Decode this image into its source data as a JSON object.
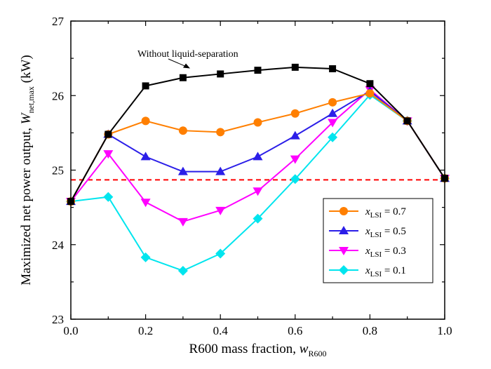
{
  "chart_data": {
    "type": "line",
    "x": [
      0.0,
      0.1,
      0.2,
      0.3,
      0.4,
      0.5,
      0.6,
      0.7,
      0.8,
      0.9,
      1.0
    ],
    "series": [
      {
        "name": "",
        "color": "#000000",
        "marker": "square",
        "values": [
          24.58,
          25.48,
          26.13,
          26.24,
          26.29,
          26.34,
          26.38,
          26.36,
          26.16,
          25.66,
          24.89
        ]
      },
      {
        "name": "x_LSI = 0.7",
        "color": "#ff7f00",
        "marker": "circle",
        "values": [
          24.58,
          25.48,
          25.66,
          25.53,
          25.51,
          25.64,
          25.76,
          25.91,
          26.03,
          25.66,
          24.89
        ]
      },
      {
        "name": "x_LSI = 0.5",
        "color": "#2b1ee8",
        "marker": "triangle-up",
        "values": [
          24.58,
          25.48,
          25.18,
          24.98,
          24.98,
          25.18,
          25.46,
          25.76,
          26.06,
          25.66,
          24.89
        ]
      },
      {
        "name": "x_LSI = 0.3",
        "color": "#ff00ff",
        "marker": "triangle-down",
        "values": [
          24.58,
          25.22,
          24.57,
          24.31,
          24.46,
          24.72,
          25.15,
          25.64,
          26.08,
          25.66,
          24.89
        ]
      },
      {
        "name": "x_LSI = 0.1",
        "color": "#00e5ee",
        "marker": "diamond",
        "values": [
          24.58,
          24.64,
          23.83,
          23.65,
          23.88,
          24.35,
          24.88,
          25.44,
          26.01,
          25.66,
          24.89
        ]
      }
    ],
    "reference_line": {
      "y": 24.87,
      "color": "#ff0000",
      "style": "dashed"
    },
    "annotation": "Without liquid-separation",
    "xlabel": {
      "main": "R600 mass fraction, ",
      "var": "w",
      "sub": "R600"
    },
    "ylabel": {
      "main": "Maximized net power output, ",
      "var": "W",
      "sub": "net,max",
      "unit": "  (kW)"
    },
    "xlim": [
      0.0,
      1.0
    ],
    "ylim": [
      23,
      27
    ],
    "xticks": [
      "0.0",
      "0.2",
      "0.4",
      "0.6",
      "0.8",
      "1.0"
    ],
    "yticks": [
      "23",
      "24",
      "25",
      "26",
      "27"
    ],
    "legend": {
      "position": "lower-right",
      "entries": [
        {
          "var": "x",
          "sub": "LSI",
          "text": " = 0.7"
        },
        {
          "var": "x",
          "sub": "LSI",
          "text": " = 0.5"
        },
        {
          "var": "x",
          "sub": "LSI",
          "text": " = 0.3"
        },
        {
          "var": "x",
          "sub": "LSI",
          "text": " = 0.1"
        }
      ]
    }
  }
}
